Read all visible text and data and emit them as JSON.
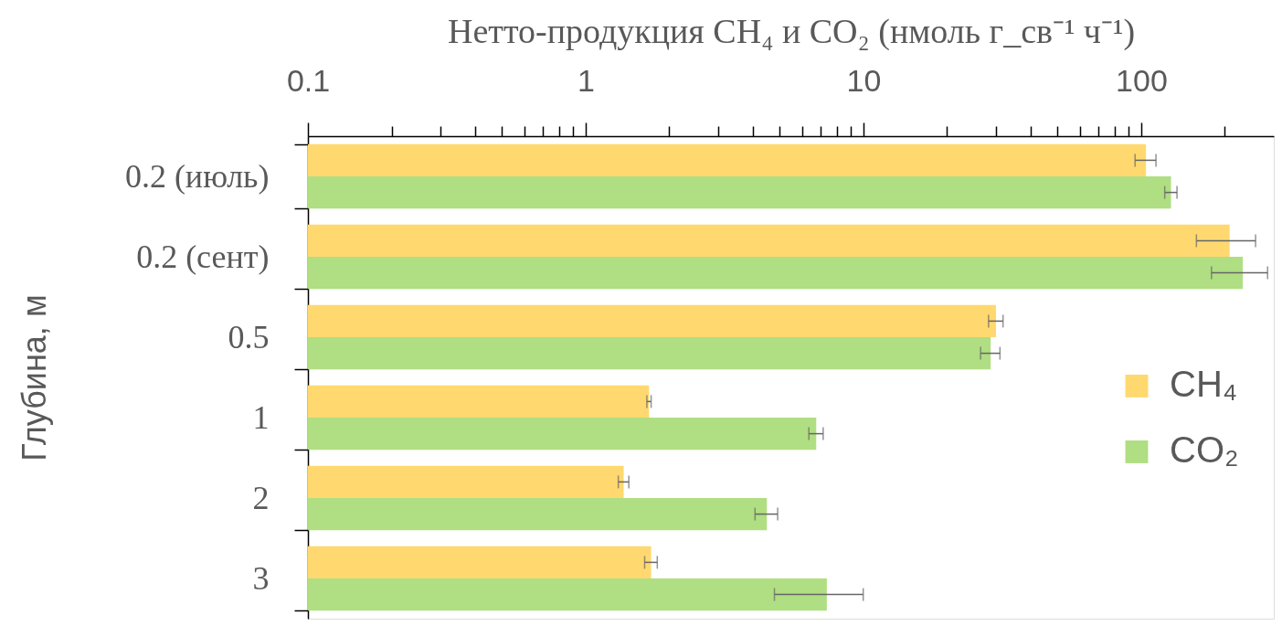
{
  "chart_data": {
    "type": "bar",
    "orientation": "horizontal",
    "xlabel": "Нетто-продукция CH₄ и CO₂ (нмоль г_св⁻¹ ч⁻¹)",
    "ylabel": "Глубина, м",
    "categories": [
      "0.2 (июль)",
      "0.2 (сент)",
      "0.5",
      "1",
      "2",
      "3"
    ],
    "log": "x",
    "xlim": [
      0.1,
      300
    ],
    "xticks": [
      0.1,
      {
        "value": 0.2,
        "label": null
      },
      {
        "value": 0.3,
        "label": null
      },
      {
        "value": 0.4,
        "label": null
      },
      {
        "value": 0.5,
        "label": null
      },
      {
        "value": 0.6,
        "label": null
      },
      {
        "value": 0.7,
        "label": null
      },
      {
        "value": 0.8,
        "label": null
      },
      {
        "value": 0.9,
        "label": null
      },
      1,
      {
        "value": 2,
        "label": null
      },
      {
        "value": 3,
        "label": null
      },
      {
        "value": 4,
        "label": null
      },
      {
        "value": 5,
        "label": null
      },
      {
        "value": 6,
        "label": null
      },
      {
        "value": 7,
        "label": null
      },
      {
        "value": 8,
        "label": null
      },
      {
        "value": 9,
        "label": null
      },
      10,
      {
        "value": 20,
        "label": null
      },
      {
        "value": 30,
        "label": null
      },
      {
        "value": 40,
        "label": null
      },
      {
        "value": 50,
        "label": null
      },
      {
        "value": 60,
        "label": null
      },
      {
        "value": 70,
        "label": null
      },
      {
        "value": 80,
        "label": null
      },
      {
        "value": 90,
        "label": null
      },
      100,
      {
        "value": 200,
        "label": null
      }
    ],
    "legend": "right",
    "series": [
      {
        "name": "CH₄",
        "color": "#ffd96f",
        "values": [
          104,
          208,
          30,
          1.69,
          1.37,
          1.72
        ],
        "errors": [
          9,
          50,
          1.8,
          0.03,
          0.06,
          0.09
        ]
      },
      {
        "name": "CO₂",
        "color": "#b0de82",
        "values": [
          128,
          232,
          28.7,
          6.76,
          4.49,
          7.38
        ],
        "errors": [
          6.5,
          53,
          2.3,
          0.4,
          0.42,
          2.6
        ]
      }
    ]
  }
}
